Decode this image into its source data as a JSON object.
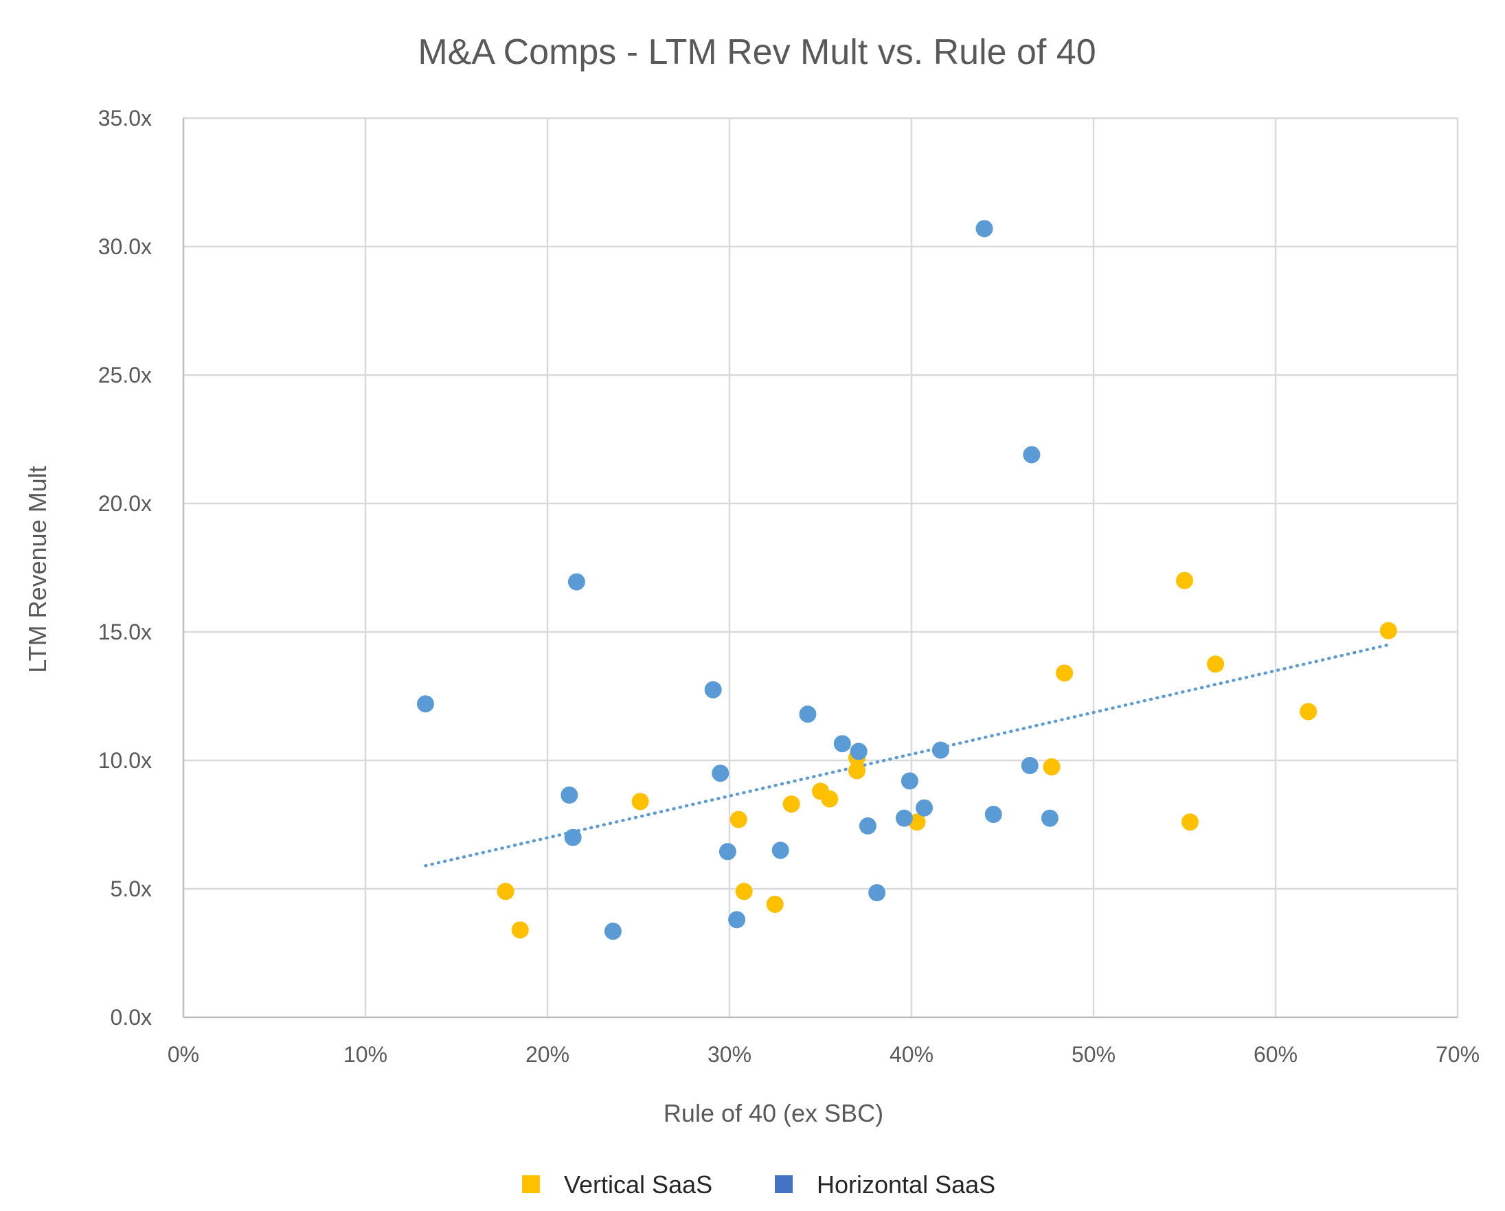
{
  "chart_data": {
    "type": "scatter",
    "title": "M&A Comps - LTM Rev Mult vs. Rule of 40",
    "xlabel": "Rule of 40 (ex SBC)",
    "ylabel": "LTM Revenue Mult",
    "xlim": [
      0,
      70
    ],
    "ylim": [
      0,
      35
    ],
    "x_ticks": [
      "0%",
      "10%",
      "20%",
      "30%",
      "40%",
      "50%",
      "60%",
      "70%"
    ],
    "y_ticks": [
      "0.0x",
      "5.0x",
      "10.0x",
      "15.0x",
      "20.0x",
      "25.0x",
      "30.0x",
      "35.0x"
    ],
    "grid": true,
    "legend_position": "bottom",
    "trendline": {
      "type": "linear",
      "style": "dotted",
      "color": "#5b9bd5",
      "x": [
        13.3,
        66.2
      ],
      "y": [
        5.9,
        14.5
      ]
    },
    "series": [
      {
        "name": "Vertical SaaS",
        "color": "#ffc000",
        "legend_color": "#ffc000",
        "points": [
          {
            "x": 17.7,
            "y": 4.9
          },
          {
            "x": 18.5,
            "y": 3.4
          },
          {
            "x": 25.1,
            "y": 8.4
          },
          {
            "x": 30.5,
            "y": 7.7
          },
          {
            "x": 30.8,
            "y": 4.9
          },
          {
            "x": 32.5,
            "y": 4.4
          },
          {
            "x": 33.4,
            "y": 8.3
          },
          {
            "x": 35.0,
            "y": 8.8
          },
          {
            "x": 35.5,
            "y": 8.5
          },
          {
            "x": 37.0,
            "y": 10.1
          },
          {
            "x": 37.0,
            "y": 9.6
          },
          {
            "x": 40.3,
            "y": 7.6
          },
          {
            "x": 47.7,
            "y": 9.75
          },
          {
            "x": 48.4,
            "y": 13.4
          },
          {
            "x": 55.0,
            "y": 17.0
          },
          {
            "x": 55.3,
            "y": 7.6
          },
          {
            "x": 56.7,
            "y": 13.75
          },
          {
            "x": 61.8,
            "y": 11.9
          },
          {
            "x": 66.2,
            "y": 15.05
          }
        ]
      },
      {
        "name": "Horizontal SaaS",
        "color": "#5b9bd5",
        "legend_color": "#4472c4",
        "points": [
          {
            "x": 13.3,
            "y": 12.2
          },
          {
            "x": 21.2,
            "y": 8.65
          },
          {
            "x": 21.4,
            "y": 7.0
          },
          {
            "x": 21.6,
            "y": 16.95
          },
          {
            "x": 23.6,
            "y": 3.35
          },
          {
            "x": 29.1,
            "y": 12.75
          },
          {
            "x": 29.5,
            "y": 9.5
          },
          {
            "x": 29.9,
            "y": 6.45
          },
          {
            "x": 30.4,
            "y": 3.8
          },
          {
            "x": 32.8,
            "y": 6.5
          },
          {
            "x": 34.3,
            "y": 11.8
          },
          {
            "x": 36.2,
            "y": 10.65
          },
          {
            "x": 37.1,
            "y": 10.35
          },
          {
            "x": 37.6,
            "y": 7.45
          },
          {
            "x": 38.1,
            "y": 4.85
          },
          {
            "x": 39.6,
            "y": 7.75
          },
          {
            "x": 39.9,
            "y": 9.2
          },
          {
            "x": 40.7,
            "y": 8.15
          },
          {
            "x": 41.6,
            "y": 10.4
          },
          {
            "x": 44.0,
            "y": 30.7
          },
          {
            "x": 44.5,
            "y": 7.9
          },
          {
            "x": 46.5,
            "y": 9.8
          },
          {
            "x": 46.6,
            "y": 21.9
          },
          {
            "x": 47.6,
            "y": 7.75
          }
        ]
      }
    ]
  }
}
